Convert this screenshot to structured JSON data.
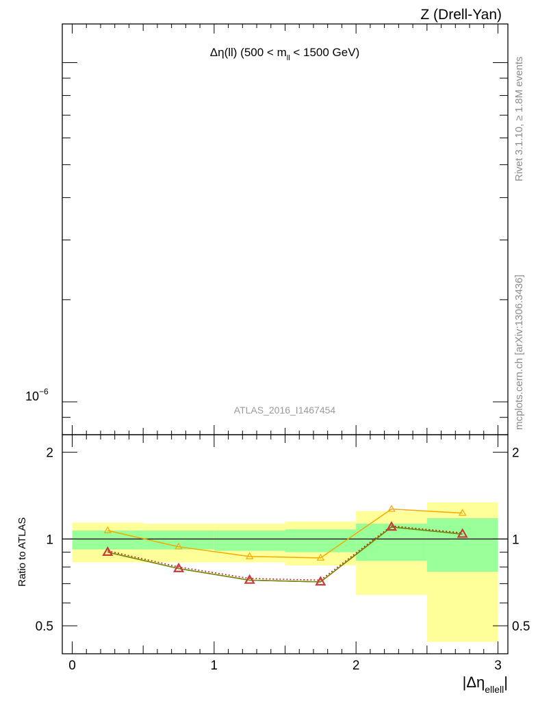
{
  "process_label": "Z (Drell-Yan)",
  "side_labels": {
    "rivet": "Rivet 3.1.10, ≥ 1.8M events",
    "mcplots": "mcplots.cern.ch [arXiv:1306.3436]"
  },
  "chart_data": [
    {
      "panel": "main",
      "type": "line",
      "title": "Δη(ll) (500 < m_ll < 1500 GeV)",
      "title_parts": {
        "prefix": "Δη(ll) (500 < m",
        "subscript": "ll",
        "suffix": " < 1500 GeV)"
      },
      "analysis_label": "ATLAS_2016_I1467454",
      "y_scale": "log",
      "y_tick_label": "10",
      "y_tick_exponent": "−6",
      "y_tick_value": 1e-06,
      "ylim": [
        8e-07,
        1.3e-05
      ],
      "xlim": [
        -0.07,
        3.07
      ],
      "series": []
    },
    {
      "panel": "ratio",
      "type": "line",
      "ylabel": "Ratio to ATLAS",
      "xlabel_parts": {
        "main": "|Δη",
        "subscript": "ellell",
        "suffix": "|"
      },
      "xlim": [
        -0.07,
        3.07
      ],
      "ylim": [
        0.4,
        2.3
      ],
      "x_ticks": [
        0,
        1,
        2,
        3
      ],
      "x_tick_labels": [
        "0",
        "1",
        "2",
        "3"
      ],
      "y_ticks": [
        0.5,
        1,
        2
      ],
      "y_tick_labels": [
        "0.5",
        "1",
        "2"
      ],
      "reference": 1,
      "bands": [
        {
          "x0": 0.0,
          "x1": 0.5,
          "inner": [
            0.92,
            1.07
          ],
          "outer": [
            0.83,
            1.14
          ]
        },
        {
          "x0": 0.5,
          "x1": 1.0,
          "inner": [
            0.92,
            1.07
          ],
          "outer": [
            0.83,
            1.13
          ]
        },
        {
          "x0": 1.0,
          "x1": 1.5,
          "inner": [
            0.91,
            1.07
          ],
          "outer": [
            0.83,
            1.13
          ]
        },
        {
          "x0": 1.5,
          "x1": 2.0,
          "inner": [
            0.9,
            1.08
          ],
          "outer": [
            0.81,
            1.15
          ]
        },
        {
          "x0": 2.0,
          "x1": 2.5,
          "inner": [
            0.84,
            1.13
          ],
          "outer": [
            0.64,
            1.25
          ]
        },
        {
          "x0": 2.5,
          "x1": 3.0,
          "inner": [
            0.77,
            1.18
          ],
          "outer": [
            0.44,
            1.34
          ]
        }
      ],
      "band_colors": {
        "inner": "#99ff99",
        "outer": "#ffff99"
      },
      "x": [
        0.25,
        0.75,
        1.25,
        1.75,
        2.25,
        2.75
      ],
      "series": [
        {
          "color": "#f5a800",
          "style": "solid",
          "marker": "triangle-open-small",
          "values": [
            1.07,
            0.94,
            0.87,
            0.86,
            1.27,
            1.23
          ]
        },
        {
          "color": "#c02020",
          "style": "dotted",
          "marker": "none",
          "values": [
            0.91,
            0.8,
            0.73,
            0.72,
            1.11,
            1.05
          ]
        },
        {
          "color": "#7a3a00",
          "style": "solid",
          "marker": "none",
          "values": [
            0.9,
            0.79,
            0.72,
            0.71,
            1.1,
            1.04
          ]
        },
        {
          "color": "#6b8e00",
          "style": "solid",
          "marker": "none",
          "values": [
            0.9,
            0.79,
            0.72,
            0.71,
            1.1,
            1.04
          ]
        },
        {
          "color": "#c83a3a",
          "style": "none",
          "marker": "triangle-open",
          "values": [
            0.9,
            0.79,
            0.72,
            0.71,
            1.1,
            1.04
          ]
        }
      ]
    }
  ]
}
